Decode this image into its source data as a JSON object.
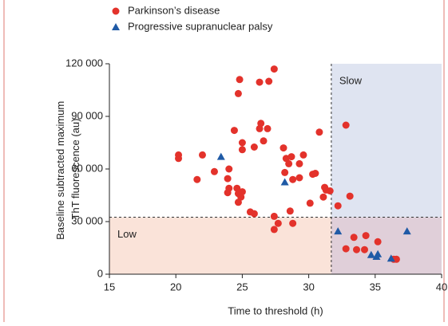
{
  "chart_data": {
    "type": "scatter",
    "xlabel": "Time to threshold (h)",
    "ylabel": [
      "Baseline subtracted maximum",
      "ThT fluorescence (au)"
    ],
    "xlim": [
      15,
      40
    ],
    "xticks": [
      15,
      20,
      25,
      30,
      35,
      40
    ],
    "ylim": [
      0,
      120000
    ],
    "yticks": [
      0,
      {
        "value": 30000,
        "label": "30 000"
      },
      {
        "value": 60000,
        "label": "60 000"
      },
      {
        "value": 90000,
        "label": "90 000"
      },
      {
        "value": 120000,
        "label": "120 000"
      }
    ],
    "thresholds": {
      "x": 31.7,
      "y": 32500
    },
    "region_labels": {
      "slow": "Slow",
      "low": "Low"
    },
    "series": [
      {
        "name": "Parkinson’s disease",
        "color": "#e3322b",
        "marker": "circle",
        "x": [
          27.4,
          24.8,
          26.3,
          27.0,
          24.7,
          26.4,
          26.3,
          26.9,
          24.4,
          32.8,
          30.8,
          25.0,
          26.6,
          25.9,
          25.0,
          28.1,
          20.2,
          20.2,
          22.0,
          28.3,
          28.7,
          28.5,
          29.6,
          29.3,
          24.0,
          22.9,
          21.6,
          28.2,
          29.3,
          30.3,
          30.5,
          28.8,
          23.9,
          24.0,
          23.9,
          24.6,
          25.0,
          24.7,
          24.9,
          24.7,
          30.1,
          31.2,
          31.3,
          31.6,
          31.1,
          25.6,
          25.9,
          27.4,
          27.7,
          27.4,
          28.8,
          28.6,
          32.2,
          33.1,
          32.8,
          33.4,
          33.6,
          34.3,
          34.2,
          35.2,
          36.6,
          36.4
        ],
        "values": [
          117000,
          111000,
          109500,
          110000,
          103000,
          86000,
          83000,
          83000,
          82000,
          85000,
          81000,
          75000,
          76000,
          72500,
          71000,
          72000,
          68000,
          66000,
          68000,
          66000,
          67000,
          63000,
          68000,
          63000,
          60000,
          58500,
          54000,
          58000,
          55000,
          57000,
          57500,
          54000,
          54500,
          49000,
          46500,
          49000,
          47000,
          46000,
          44000,
          41000,
          40500,
          49500,
          48000,
          47500,
          44000,
          35500,
          34500,
          33000,
          29000,
          25500,
          29000,
          36000,
          39000,
          44500,
          14500,
          21000,
          14000,
          22000,
          14000,
          18500,
          8500,
          8500
        ]
      },
      {
        "name": "Progressive supranuclear palsy",
        "color": "#1f5aa6",
        "marker": "triangle",
        "x": [
          23.4,
          28.2,
          32.2,
          34.7,
          35.1,
          35.2,
          36.2,
          37.4
        ],
        "values": [
          67000,
          52500,
          24500,
          11000,
          10000,
          11500,
          9000,
          24500
        ]
      }
    ]
  }
}
